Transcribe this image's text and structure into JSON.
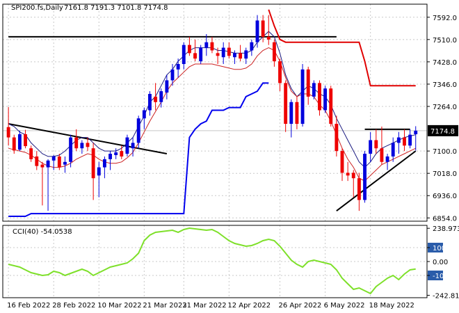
{
  "chart_data": {
    "type": "candlestick",
    "symbol_label": "SPI200.fs,Daily",
    "ohlc_label": "7161.8 7191.3 7101.8 7174.8",
    "last_price_label": "7174.8",
    "price_axis": {
      "ylim": [
        6842,
        7640
      ],
      "ticks": [
        "7592.0",
        "7510.0",
        "7428.0",
        "7346.0",
        "7264.0",
        "7100.0",
        "7018.0",
        "6936.0",
        "6854.0"
      ]
    },
    "x_labels": [
      "16 Feb 2022",
      "28 Feb 2022",
      "10 Mar 2022",
      "21 Mar 2022",
      "31 Mar 2022",
      "12 Apr 2022",
      "26 Apr 2022",
      "6 May 2022",
      "18 May 2022"
    ],
    "candles": [
      [
        7188,
        7262,
        7120,
        7150
      ],
      [
        7150,
        7160,
        7090,
        7102
      ],
      [
        7105,
        7175,
        7100,
        7162
      ],
      [
        7162,
        7178,
        7110,
        7118
      ],
      [
        7110,
        7120,
        7060,
        7070
      ],
      [
        7080,
        7100,
        7030,
        7045
      ],
      [
        7050,
        7060,
        6900,
        7040
      ],
      [
        7040,
        7070,
        6880,
        7065
      ],
      [
        7065,
        7085,
        7030,
        7080
      ],
      [
        7080,
        7090,
        7030,
        7040
      ],
      [
        7050,
        7080,
        7020,
        7060
      ],
      [
        7060,
        7160,
        7040,
        7150
      ],
      [
        7150,
        7180,
        7100,
        7110
      ],
      [
        7110,
        7140,
        7090,
        7130
      ],
      [
        7130,
        7150,
        7100,
        7115
      ],
      [
        7110,
        7130,
        6920,
        7000
      ],
      [
        7010,
        7060,
        6930,
        7040
      ],
      [
        7040,
        7080,
        7000,
        7070
      ],
      [
        7070,
        7100,
        7030,
        7090
      ],
      [
        7085,
        7110,
        7070,
        7095
      ],
      [
        7100,
        7120,
        7070,
        7080
      ],
      [
        7090,
        7160,
        7080,
        7150
      ],
      [
        7110,
        7150,
        7080,
        7130
      ],
      [
        7130,
        7230,
        7110,
        7220
      ],
      [
        7220,
        7260,
        7180,
        7250
      ],
      [
        7250,
        7320,
        7230,
        7310
      ],
      [
        7300,
        7350,
        7250,
        7280
      ],
      [
        7280,
        7330,
        7260,
        7320
      ],
      [
        7315,
        7380,
        7290,
        7360
      ],
      [
        7360,
        7420,
        7340,
        7400
      ],
      [
        7400,
        7440,
        7370,
        7420
      ],
      [
        7420,
        7500,
        7400,
        7490
      ],
      [
        7490,
        7520,
        7450,
        7460
      ],
      [
        7460,
        7510,
        7430,
        7440
      ],
      [
        7430,
        7490,
        7420,
        7480
      ],
      [
        7480,
        7530,
        7450,
        7500
      ],
      [
        7500,
        7520,
        7460,
        7470
      ],
      [
        7460,
        7480,
        7420,
        7450
      ],
      [
        7445,
        7500,
        7420,
        7480
      ],
      [
        7480,
        7500,
        7440,
        7450
      ],
      [
        7445,
        7470,
        7420,
        7460
      ],
      [
        7460,
        7490,
        7430,
        7440
      ],
      [
        7440,
        7480,
        7420,
        7470
      ],
      [
        7470,
        7510,
        7450,
        7500
      ],
      [
        7500,
        7600,
        7480,
        7580
      ],
      [
        7580,
        7600,
        7500,
        7520
      ],
      [
        7520,
        7600,
        7490,
        7510
      ],
      [
        7500,
        7510,
        7410,
        7430
      ],
      [
        7430,
        7440,
        7320,
        7350
      ],
      [
        7350,
        7360,
        7170,
        7200
      ],
      [
        7200,
        7290,
        7150,
        7280
      ],
      [
        7280,
        7300,
        7180,
        7200
      ],
      [
        7200,
        7420,
        7190,
        7400
      ],
      [
        7400,
        7410,
        7270,
        7300
      ],
      [
        7300,
        7360,
        7290,
        7350
      ],
      [
        7350,
        7360,
        7230,
        7250
      ],
      [
        7250,
        7340,
        7240,
        7330
      ],
      [
        7330,
        7340,
        7190,
        7200
      ],
      [
        7200,
        7230,
        7080,
        7100
      ],
      [
        7100,
        7110,
        6990,
        7020
      ],
      [
        7020,
        7060,
        6990,
        7010
      ],
      [
        7020,
        7030,
        6930,
        7000
      ],
      [
        7000,
        7020,
        6880,
        6920
      ],
      [
        6920,
        7100,
        6910,
        7090
      ],
      [
        7090,
        7170,
        7060,
        7140
      ],
      [
        7140,
        7180,
        7090,
        7110
      ],
      [
        7110,
        7190,
        7050,
        7060
      ],
      [
        7060,
        7090,
        7030,
        7080
      ],
      [
        7080,
        7150,
        7060,
        7130
      ],
      [
        7130,
        7170,
        7090,
        7150
      ],
      [
        7150,
        7180,
        7100,
        7120
      ],
      [
        7120,
        7180,
        7110,
        7160
      ],
      [
        7161.8,
        7191.3,
        7101.8,
        7174.8
      ]
    ],
    "series": [
      {
        "values": [
          7200,
          7190,
          7170,
          7160,
          7130,
          7110,
          7090,
          7080,
          7080,
          7085,
          7100,
          7120,
          7140,
          7150,
          7150,
          7130,
          7110,
          7100,
          7100,
          7100,
          7110,
          7130,
          7150,
          7190,
          7230,
          7280,
          7300,
          7340,
          7380,
          7400,
          7430,
          7450,
          7470,
          7480,
          7480,
          7480,
          7480,
          7470,
          7470,
          7465,
          7460,
          7460,
          7460,
          7470,
          7500,
          7520,
          7540,
          7520,
          7460,
          7380,
          7330,
          7300,
          7320,
          7340,
          7330,
          7310,
          7300,
          7270,
          7220,
          7180,
          7140,
          7100,
          7060,
          7040,
          7060,
          7090,
          7110,
          7120,
          7130,
          7140,
          7150,
          7155,
          7160
        ]
      },
      {
        "values": [
          7110,
          7105,
          7100,
          7095,
          7085,
          7070,
          7055,
          7045,
          7040,
          7040,
          7045,
          7055,
          7070,
          7080,
          7090,
          7085,
          7070,
          7060,
          7055,
          7055,
          7060,
          7075,
          7095,
          7130,
          7170,
          7210,
          7245,
          7280,
          7320,
          7350,
          7370,
          7390,
          7410,
          7420,
          7420,
          7420,
          7420,
          7415,
          7410,
          7405,
          7400,
          7400,
          7405,
          7420,
          7450,
          7470,
          7480,
          7470,
          7430,
          7370,
          7320,
          7300,
          7310,
          7310,
          7300,
          7270,
          7250,
          7210,
          7160,
          7110,
          7070,
          7040,
          7000,
          6990,
          7010,
          7030,
          7050,
          7060,
          7070,
          7080,
          7090,
          7100,
          7110
        ]
      },
      {
        "values": [
          6860,
          6860,
          6860,
          6860,
          6870,
          6870,
          6870,
          6870,
          6870,
          6870,
          6870,
          6870,
          6870,
          6870,
          6870,
          6870,
          6870,
          6870,
          6870,
          6870,
          6870,
          6870,
          6870,
          6870,
          6870,
          6870,
          6870,
          6870,
          6870,
          6870,
          6870,
          6870,
          7150,
          7180,
          7200,
          7210,
          7250,
          7250,
          7250,
          7260,
          7260,
          7260,
          7300,
          7310,
          7320,
          7350,
          7350,
          null,
          null,
          null,
          null,
          null,
          null,
          null,
          null,
          null,
          null,
          null,
          null,
          null,
          null,
          null,
          null,
          null,
          null,
          null,
          null,
          null,
          null,
          null,
          null,
          null,
          null
        ]
      },
      {
        "values": [
          null,
          null,
          null,
          null,
          null,
          null,
          null,
          null,
          null,
          null,
          null,
          null,
          null,
          null,
          null,
          null,
          null,
          null,
          null,
          null,
          null,
          null,
          null,
          null,
          null,
          null,
          null,
          null,
          null,
          null,
          null,
          null,
          null,
          null,
          null,
          null,
          null,
          null,
          null,
          null,
          null,
          null,
          null,
          null,
          null,
          null,
          7620,
          7560,
          7510,
          7500,
          7500,
          7500,
          7500,
          7500,
          7500,
          7500,
          7500,
          7500,
          7500,
          7500,
          7500,
          7500,
          7500,
          7430,
          7340,
          7340,
          7340,
          7340,
          7340,
          7340,
          7340,
          7340,
          7340
        ]
      }
    ],
    "trendlines": [
      {
        "from": [
          0,
          7200
        ],
        "to": [
          28,
          7090
        ]
      },
      {
        "from": [
          0,
          7520
        ],
        "to": [
          58,
          7520
        ]
      },
      {
        "from": [
          63,
          7180
        ],
        "to": [
          71,
          7180
        ]
      },
      {
        "from": [
          58,
          6880
        ],
        "to": [
          72,
          7100
        ]
      }
    ],
    "cci": {
      "label": "CCI(40) -54.0538",
      "ylim": [
        -260,
        260
      ],
      "ticks": [
        "238.9731",
        "100",
        "0.00",
        "-100",
        "-242.819"
      ],
      "values": [
        -20,
        -30,
        -40,
        -60,
        -80,
        -90,
        -100,
        -95,
        -70,
        -80,
        -100,
        -85,
        -70,
        -55,
        -70,
        -100,
        -80,
        -60,
        -40,
        -30,
        -20,
        -10,
        20,
        60,
        150,
        190,
        210,
        215,
        220,
        225,
        210,
        230,
        240,
        235,
        230,
        225,
        230,
        210,
        180,
        150,
        130,
        120,
        110,
        115,
        130,
        150,
        160,
        150,
        110,
        60,
        10,
        -20,
        -40,
        0,
        10,
        0,
        -10,
        -20,
        -60,
        -120,
        -160,
        -200,
        -190,
        -210,
        -230,
        -180,
        -150,
        -120,
        -100,
        -130,
        -90,
        -60,
        -54
      ]
    }
  }
}
